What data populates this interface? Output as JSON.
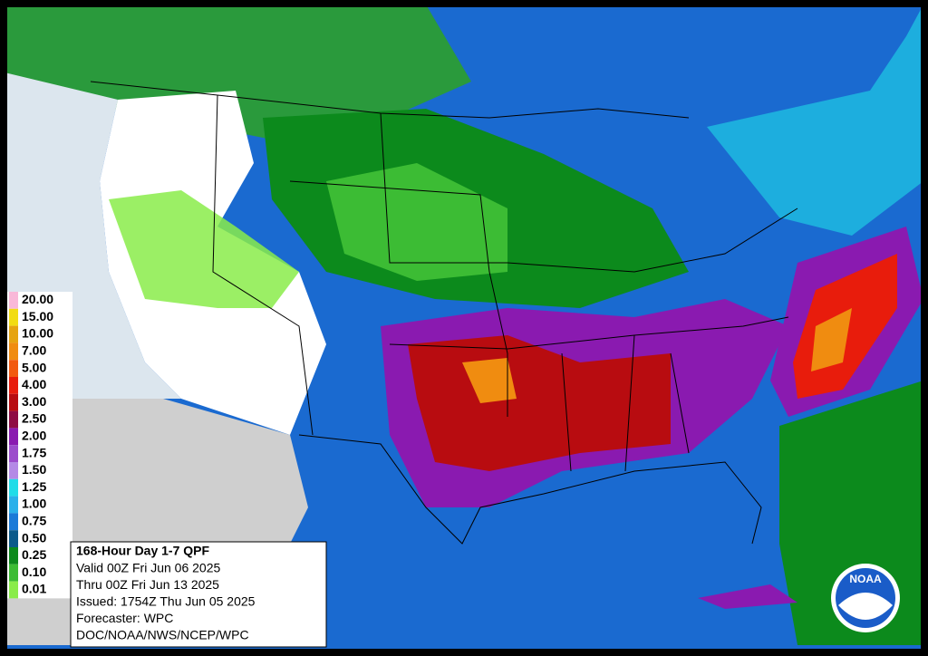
{
  "legend": [
    {
      "label": "20.00",
      "color": "#f9b8d8"
    },
    {
      "label": "15.00",
      "color": "#f2dc12"
    },
    {
      "label": "10.00",
      "color": "#e6a410"
    },
    {
      "label": "7.00",
      "color": "#f08c10"
    },
    {
      "label": "5.00",
      "color": "#f25a10"
    },
    {
      "label": "4.00",
      "color": "#e81c0c"
    },
    {
      "label": "3.00",
      "color": "#b80c10"
    },
    {
      "label": "2.50",
      "color": "#8e0c44"
    },
    {
      "label": "2.00",
      "color": "#8a1ab0"
    },
    {
      "label": "1.75",
      "color": "#9c4ccc"
    },
    {
      "label": "1.50",
      "color": "#b48ae6"
    },
    {
      "label": "1.25",
      "color": "#20dce8"
    },
    {
      "label": "1.00",
      "color": "#2ab0ea"
    },
    {
      "label": "0.75",
      "color": "#1a7ad8"
    },
    {
      "label": "0.50",
      "color": "#0c5a8a"
    },
    {
      "label": "0.25",
      "color": "#0c8a1c"
    },
    {
      "label": "0.10",
      "color": "#3cbc34"
    },
    {
      "label": "0.01",
      "color": "#8aec4a"
    }
  ],
  "info": {
    "title": "168-Hour Day 1-7 QPF",
    "lines": [
      "Valid 00Z Fri Jun 06 2025",
      "Thru 00Z Fri Jun 13 2025",
      "Issued: 1754Z Thu Jun 05 2025",
      "Forecaster: WPC",
      "DOC/NOAA/NWS/NCEP/WPC"
    ]
  },
  "logo": "NOAA"
}
